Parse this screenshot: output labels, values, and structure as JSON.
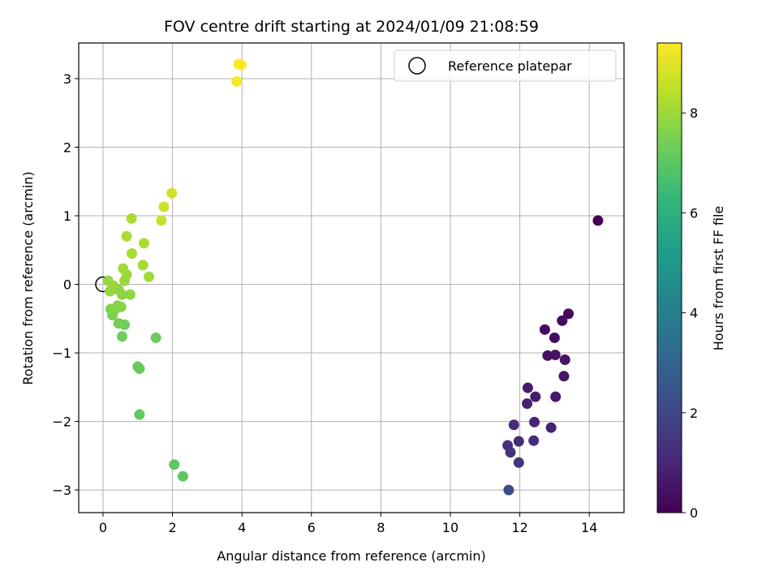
{
  "chart_data": {
    "type": "scatter",
    "title": "FOV centre drift starting at 2024/01/09 21:08:59",
    "xlabel": "Angular distance from reference (arcmin)",
    "ylabel": "Rotation from reference (arcmin)",
    "xlim": [
      -0.7,
      15
    ],
    "ylim": [
      -3.33,
      3.52
    ],
    "xticks": [
      0,
      2,
      4,
      6,
      8,
      10,
      12,
      14
    ],
    "yticks": [
      -3,
      -2,
      -1,
      0,
      1,
      2,
      3
    ],
    "grid": true,
    "legend": {
      "label": "Reference platepar",
      "position": "upper-right",
      "marker": "open-circle"
    },
    "reference_point": {
      "x": 0,
      "y": 0
    },
    "colorbar": {
      "label": "Hours from first FF file",
      "colormap": "viridis",
      "range": [
        0,
        9.4
      ],
      "ticks": [
        0,
        2,
        4,
        6,
        8
      ]
    },
    "points": [
      {
        "x": 14.25,
        "y": 0.93,
        "h": 0.0
      },
      {
        "x": 13.4,
        "y": -0.43,
        "h": 0.2
      },
      {
        "x": 13.22,
        "y": -0.53,
        "h": 0.25
      },
      {
        "x": 12.72,
        "y": -0.66,
        "h": 0.3
      },
      {
        "x": 13.0,
        "y": -0.78,
        "h": 0.35
      },
      {
        "x": 12.8,
        "y": -1.04,
        "h": 0.4
      },
      {
        "x": 13.02,
        "y": -1.03,
        "h": 0.45
      },
      {
        "x": 13.3,
        "y": -1.1,
        "h": 0.5
      },
      {
        "x": 13.27,
        "y": -1.34,
        "h": 0.55
      },
      {
        "x": 13.03,
        "y": -1.64,
        "h": 0.6
      },
      {
        "x": 12.23,
        "y": -1.51,
        "h": 0.7
      },
      {
        "x": 12.45,
        "y": -1.64,
        "h": 0.75
      },
      {
        "x": 12.21,
        "y": -1.74,
        "h": 0.85
      },
      {
        "x": 12.9,
        "y": -2.09,
        "h": 0.9
      },
      {
        "x": 12.42,
        "y": -2.01,
        "h": 0.95
      },
      {
        "x": 11.83,
        "y": -2.05,
        "h": 1.1
      },
      {
        "x": 12.4,
        "y": -2.28,
        "h": 1.15
      },
      {
        "x": 11.97,
        "y": -2.29,
        "h": 1.2
      },
      {
        "x": 11.65,
        "y": -2.35,
        "h": 1.3
      },
      {
        "x": 11.73,
        "y": -2.45,
        "h": 1.35
      },
      {
        "x": 11.97,
        "y": -2.6,
        "h": 1.45
      },
      {
        "x": 11.68,
        "y": -3.0,
        "h": 2.2
      },
      {
        "x": 2.3,
        "y": -2.8,
        "h": 7.0
      },
      {
        "x": 2.05,
        "y": -2.63,
        "h": 7.05
      },
      {
        "x": 1.05,
        "y": -1.9,
        "h": 7.1
      },
      {
        "x": 1.05,
        "y": -1.23,
        "h": 7.15
      },
      {
        "x": 1.0,
        "y": -1.2,
        "h": 7.2
      },
      {
        "x": 1.52,
        "y": -0.78,
        "h": 7.25
      },
      {
        "x": 0.55,
        "y": -0.76,
        "h": 7.3
      },
      {
        "x": 0.62,
        "y": -0.59,
        "h": 7.35
      },
      {
        "x": 0.45,
        "y": -0.57,
        "h": 7.4
      },
      {
        "x": 0.27,
        "y": -0.45,
        "h": 7.5
      },
      {
        "x": 0.22,
        "y": -0.36,
        "h": 7.6
      },
      {
        "x": 0.32,
        "y": -0.38,
        "h": 7.6
      },
      {
        "x": 0.52,
        "y": -0.33,
        "h": 7.7
      },
      {
        "x": 0.42,
        "y": -0.31,
        "h": 7.7
      },
      {
        "x": 0.55,
        "y": -0.15,
        "h": 7.75
      },
      {
        "x": 0.78,
        "y": -0.15,
        "h": 7.8
      },
      {
        "x": 0.45,
        "y": -0.08,
        "h": 7.8
      },
      {
        "x": 0.2,
        "y": -0.1,
        "h": 7.9
      },
      {
        "x": 0.15,
        "y": 0.05,
        "h": 7.9
      },
      {
        "x": 0.3,
        "y": -0.02,
        "h": 7.95
      },
      {
        "x": 0.62,
        "y": 0.05,
        "h": 8.0
      },
      {
        "x": 0.68,
        "y": 0.14,
        "h": 8.0
      },
      {
        "x": 0.58,
        "y": 0.23,
        "h": 8.05
      },
      {
        "x": 1.32,
        "y": 0.11,
        "h": 8.1
      },
      {
        "x": 1.15,
        "y": 0.28,
        "h": 8.1
      },
      {
        "x": 0.83,
        "y": 0.45,
        "h": 8.15
      },
      {
        "x": 1.18,
        "y": 0.6,
        "h": 8.2
      },
      {
        "x": 0.68,
        "y": 0.7,
        "h": 8.2
      },
      {
        "x": 0.82,
        "y": 0.96,
        "h": 8.25
      },
      {
        "x": 1.68,
        "y": 0.93,
        "h": 8.6
      },
      {
        "x": 1.75,
        "y": 1.13,
        "h": 8.7
      },
      {
        "x": 1.98,
        "y": 1.33,
        "h": 8.75
      },
      {
        "x": 3.85,
        "y": 2.96,
        "h": 9.35
      },
      {
        "x": 3.9,
        "y": 3.21,
        "h": 9.38
      },
      {
        "x": 3.98,
        "y": 3.2,
        "h": 9.4
      }
    ]
  }
}
